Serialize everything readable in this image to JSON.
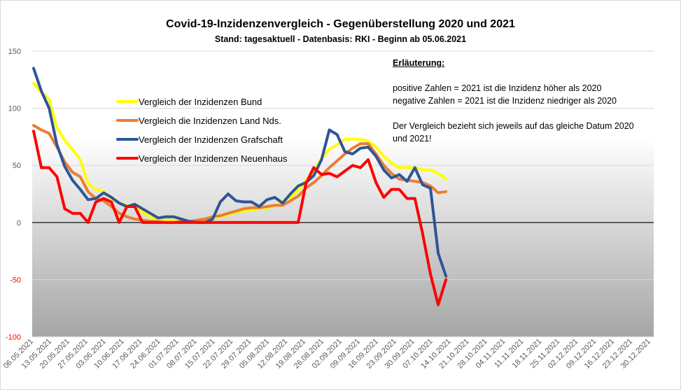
{
  "chart_data": {
    "type": "line",
    "title": "Covid-19-Inzidenzenvergleich - Gegenüberstellung 2020 und 2021",
    "subtitle": "Stand: tagesaktuell - Datenbasis: RKI - Beginn ab 05.06.2021",
    "ylim": [
      -100,
      150
    ],
    "yticks": [
      150,
      100,
      50,
      0,
      -50,
      -100
    ],
    "grid": true,
    "legend_position": "top-left",
    "x_tick_labels": [
      "06.05.2021",
      "13.05.2021",
      "20.05.2021",
      "27.05.2021",
      "03.06.2021",
      "10.06.2021",
      "17.06.2021",
      "24.06.2021",
      "01.07.2021",
      "08.07.2021",
      "15.07.2021",
      "22.07.2021",
      "29.07.2021",
      "05.08.2021",
      "12.08.2021",
      "19.08.2021",
      "26.08.2021",
      "02.09.2021",
      "09.09.2021",
      "16.09.2021",
      "23.09.2021",
      "30.09.2021",
      "07.10.2021",
      "14.10.2021",
      "21.10.2021",
      "28.10.2021",
      "04.11.2021",
      "11.11.2021",
      "18.11.2021",
      "25.11.2021",
      "02.12.2021",
      "09.12.2021",
      "16.12.2021",
      "23.12.2021",
      "30.12.2021"
    ],
    "x": [
      "06.05.2021",
      "09.05.2021",
      "12.05.2021",
      "15.05.2021",
      "18.05.2021",
      "21.05.2021",
      "24.05.2021",
      "27.05.2021",
      "30.05.2021",
      "02.06.2021",
      "05.06.2021",
      "08.06.2021",
      "11.06.2021",
      "14.06.2021",
      "17.06.2021",
      "20.06.2021",
      "23.06.2021",
      "26.06.2021",
      "29.06.2021",
      "02.07.2021",
      "05.07.2021",
      "08.07.2021",
      "11.07.2021",
      "14.07.2021",
      "17.07.2021",
      "20.07.2021",
      "23.07.2021",
      "26.07.2021",
      "29.07.2021",
      "01.08.2021",
      "04.08.2021",
      "07.08.2021",
      "10.08.2021",
      "13.08.2021",
      "16.08.2021",
      "19.08.2021",
      "22.08.2021",
      "25.08.2021",
      "28.08.2021",
      "31.08.2021",
      "03.09.2021",
      "06.09.2021",
      "09.09.2021",
      "12.09.2021",
      "15.09.2021",
      "18.09.2021",
      "21.09.2021",
      "24.09.2021",
      "27.09.2021",
      "30.09.2021",
      "03.10.2021",
      "06.10.2021",
      "09.10.2021",
      "12.10.2021"
    ],
    "series": [
      {
        "name": "Vergleich der Inzidenzen Bund",
        "color": "#ffff00",
        "values": [
          122,
          114,
          108,
          83,
          72,
          64,
          55,
          34,
          29,
          27,
          21,
          17,
          15,
          14,
          9,
          5,
          2,
          2,
          2,
          2,
          1,
          1,
          2,
          4,
          5,
          7,
          9,
          10,
          11,
          12,
          13,
          15,
          18,
          22,
          28,
          37,
          45,
          56,
          64,
          68,
          73,
          73,
          73,
          71,
          66,
          58,
          52,
          48,
          48,
          48,
          46,
          46,
          43,
          38
        ]
      },
      {
        "name": "Vergleich die Inzidenzen Land Nds.",
        "color": "#ed7d31",
        "values": [
          85,
          81,
          78,
          66,
          53,
          44,
          40,
          27,
          21,
          19,
          14,
          8,
          5,
          3,
          2,
          1,
          1,
          0,
          0,
          1,
          1,
          2,
          3,
          5,
          6,
          8,
          10,
          12,
          13,
          13,
          14,
          15,
          15,
          19,
          23,
          30,
          35,
          41,
          48,
          54,
          60,
          65,
          69,
          69,
          60,
          50,
          43,
          38,
          37,
          36,
          35,
          32,
          26,
          27
        ]
      },
      {
        "name": "Vergleich der Inzidenzen Grafschaft",
        "color": "#2f5597",
        "values": [
          135,
          115,
          100,
          68,
          49,
          37,
          29,
          20,
          21,
          26,
          22,
          17,
          14,
          16,
          12,
          8,
          4,
          5,
          5,
          3,
          1,
          0,
          0,
          3,
          18,
          25,
          19,
          18,
          18,
          14,
          20,
          22,
          17,
          25,
          32,
          35,
          41,
          55,
          81,
          77,
          62,
          60,
          65,
          66,
          58,
          46,
          39,
          42,
          36,
          48,
          33,
          30,
          -27,
          -47
        ]
      },
      {
        "name": "Vergleich der Inzidenzen Neuenhaus",
        "color": "#ff0000",
        "values": [
          80,
          48,
          48,
          40,
          12,
          8,
          8,
          0,
          18,
          21,
          18,
          0,
          14,
          14,
          0,
          0,
          0,
          0,
          0,
          0,
          0,
          0,
          0,
          0,
          0,
          0,
          0,
          0,
          0,
          0,
          0,
          0,
          0,
          0,
          0,
          34,
          48,
          42,
          43,
          40,
          45,
          50,
          48,
          55,
          35,
          22,
          29,
          29,
          21,
          21,
          -10,
          -45,
          -72,
          -50
        ]
      }
    ]
  },
  "notes": {
    "heading": "Erläuterung:",
    "positive": "positive Zahlen = 2021  ist die Inzidenz höher als 2020",
    "negative": "negative Zahlen = 2021 ist die Inzidenz niedriger als 2020",
    "comparison": "Der Vergleich bezieht sich jeweils auf das gleiche Datum 2020  und 2021!"
  }
}
